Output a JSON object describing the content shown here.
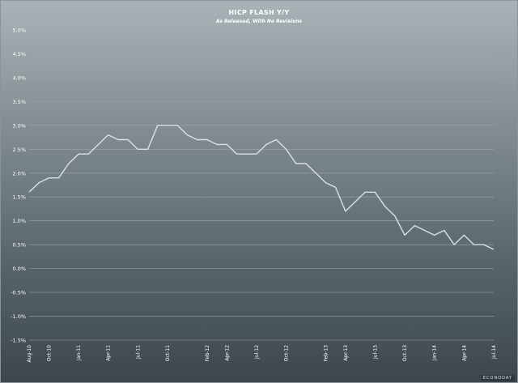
{
  "chart_data": {
    "type": "line",
    "title": "HICP FLASH Y/Y",
    "subtitle": "As Released, With No Revisions",
    "ylim": [
      -1.5,
      5.0
    ],
    "yticks": [
      -1.5,
      -1.0,
      -0.5,
      0.0,
      0.5,
      1.0,
      1.5,
      2.0,
      2.5,
      3.0,
      3.5,
      4.0,
      4.5,
      5.0
    ],
    "ytick_labels": [
      "-1.5%",
      "-1.0%",
      "-0.5%",
      "0.0%",
      "0.5%",
      "1.0%",
      "1.5%",
      "2.0%",
      "2.5%",
      "3.0%",
      "3.5%",
      "4.0%",
      "4.5%",
      "5.0%"
    ],
    "xtick_labels": [
      "Aug-10",
      "Oct-10",
      "Jan-11",
      "Apr-11",
      "Jul-11",
      "Oct-11",
      "Feb-12",
      "Apr-12",
      "Jul-12",
      "Oct-12",
      "Feb-13",
      "Apr-13",
      "Jul-13",
      "Oct-13",
      "Jan-14",
      "Apr-14",
      "Jul-14"
    ],
    "xtick_months": [
      "2010-08",
      "2010-10",
      "2011-01",
      "2011-04",
      "2011-07",
      "2011-10",
      "2012-02",
      "2012-04",
      "2012-07",
      "2012-10",
      "2013-02",
      "2013-04",
      "2013-07",
      "2013-10",
      "2014-01",
      "2014-04",
      "2014-07"
    ],
    "grid": true,
    "x": [
      "2010-08",
      "2010-09",
      "2010-10",
      "2010-11",
      "2010-12",
      "2011-01",
      "2011-02",
      "2011-03",
      "2011-04",
      "2011-05",
      "2011-06",
      "2011-07",
      "2011-08",
      "2011-09",
      "2011-10",
      "2011-11",
      "2011-12",
      "2012-01",
      "2012-02",
      "2012-03",
      "2012-04",
      "2012-05",
      "2012-06",
      "2012-07",
      "2012-08",
      "2012-09",
      "2012-10",
      "2012-11",
      "2012-12",
      "2013-01",
      "2013-02",
      "2013-03",
      "2013-04",
      "2013-05",
      "2013-06",
      "2013-07",
      "2013-08",
      "2013-09",
      "2013-10",
      "2013-11",
      "2013-12",
      "2014-01",
      "2014-02",
      "2014-03",
      "2014-04",
      "2014-05",
      "2014-06",
      "2014-07"
    ],
    "series": [
      {
        "values": [
          1.6,
          1.8,
          1.9,
          1.9,
          2.2,
          2.4,
          2.4,
          2.6,
          2.8,
          2.7,
          2.7,
          2.5,
          2.5,
          3.0,
          3.0,
          3.0,
          2.8,
          2.7,
          2.7,
          2.6,
          2.6,
          2.4,
          2.4,
          2.4,
          2.6,
          2.7,
          2.5,
          2.2,
          2.2,
          2.0,
          1.8,
          1.7,
          1.2,
          1.4,
          1.6,
          1.6,
          1.3,
          1.1,
          0.7,
          0.9,
          0.8,
          0.7,
          0.8,
          0.5,
          0.7,
          0.5,
          0.5,
          0.4
        ],
        "color": "#d8e2e6"
      }
    ],
    "grid_color": "#9aa6ab"
  },
  "watermark": "ECONODAY"
}
